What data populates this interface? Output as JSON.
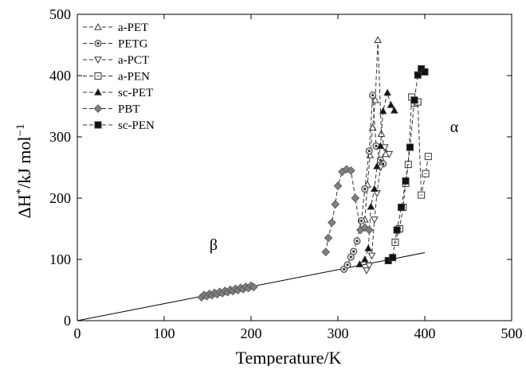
{
  "chart_data": {
    "type": "scatter",
    "title": "",
    "xlabel": "Temperature/K",
    "ylabel_main": "ΔH",
    "ylabel_sup": "*",
    "ylabel_unit": "/kJ mol",
    "ylabel_unit_sup": "−1",
    "xlim": [
      0,
      500
    ],
    "ylim": [
      0,
      500
    ],
    "xticks": [
      0,
      100,
      200,
      300,
      400,
      500
    ],
    "yticks": [
      0,
      100,
      200,
      300,
      400,
      500
    ],
    "grid": false,
    "legend_position": "top-left",
    "annotations": [
      {
        "text": "β",
        "x": 393,
        "y": 158
      },
      {
        "text": "α",
        "x": 880,
        "y": 393
      }
    ],
    "fit_line": {
      "x": [
        0,
        400
      ],
      "y": [
        0,
        111
      ]
    },
    "beta_cluster_x": [
      143,
      146,
      149,
      152,
      155,
      158,
      161,
      164,
      167,
      170,
      173,
      176,
      179,
      182,
      185,
      188,
      191,
      194,
      197,
      200,
      203
    ],
    "series": [
      {
        "name": "a-PET",
        "marker": "triangle-up-open",
        "filled": false,
        "x": [
          331,
          334,
          337,
          340,
          343,
          346,
          350,
          355
        ],
        "y": [
          165,
          222,
          270,
          315,
          360,
          458,
          305,
          272
        ]
      },
      {
        "name": "PETG",
        "marker": "circle-dot",
        "filled": false,
        "x": [
          307,
          311,
          315,
          318,
          322,
          327,
          331,
          336,
          340,
          344,
          349,
          352
        ],
        "y": [
          84,
          91,
          104,
          113,
          130,
          163,
          215,
          277,
          368,
          285,
          262,
          256
        ]
      },
      {
        "name": "a-PCT",
        "marker": "triangle-down-open",
        "filled": false,
        "x": [
          333,
          336,
          339,
          342,
          345,
          349,
          354,
          359
        ],
        "y": [
          82,
          90,
          106,
          165,
          208,
          250,
          283,
          272
        ]
      },
      {
        "name": "a-PEN",
        "marker": "square-open",
        "filled": false,
        "x": [
          366,
          371,
          375,
          378,
          381,
          385,
          388,
          392,
          396,
          401,
          404
        ],
        "y": [
          128,
          150,
          185,
          224,
          255,
          365,
          355,
          357,
          205,
          240,
          268
        ]
      },
      {
        "name": "sc-PET",
        "marker": "triangle-up-filled",
        "filled": true,
        "x": [
          325,
          331,
          335,
          338,
          342,
          345,
          349,
          352,
          357,
          361,
          365
        ],
        "y": [
          92,
          100,
          118,
          186,
          215,
          252,
          285,
          342,
          372,
          352,
          343
        ]
      },
      {
        "name": "PBT",
        "marker": "diamond-filled",
        "filled": true,
        "x": [
          286,
          289,
          293,
          297,
          300,
          305,
          310,
          315,
          320,
          326,
          331,
          336
        ],
        "y": [
          112,
          135,
          160,
          190,
          220,
          243,
          247,
          245,
          200,
          148,
          152,
          148
        ]
      },
      {
        "name": "sc-PEN",
        "marker": "square-filled",
        "filled": true,
        "x": [
          358,
          363,
          368,
          373,
          378,
          383,
          388,
          392,
          396,
          400
        ],
        "y": [
          98,
          103,
          148,
          185,
          228,
          283,
          360,
          401,
          411,
          406
        ]
      }
    ]
  }
}
